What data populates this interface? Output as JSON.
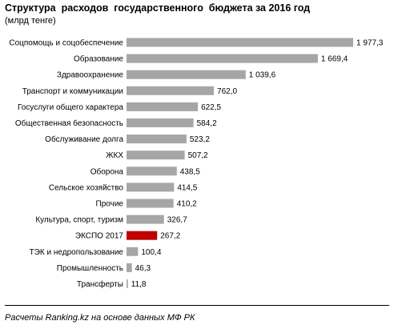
{
  "header": {
    "title": "Структура  расходов  государственного  бюджета за 2016 год",
    "subtitle": "(млрд тенге)"
  },
  "footer": {
    "source": "Расчеты Ranking.kz на основе данных МФ РК"
  },
  "colors": {
    "bar_default": "#a6a6a6",
    "bar_highlight": "#c00000"
  },
  "chart_data": {
    "type": "bar",
    "orientation": "horizontal",
    "title": "Структура  расходов  государственного  бюджета за 2016 год",
    "unit": "(млрд тенге)",
    "categories": [
      "Соцпомощь и соцобеспечение",
      "Образование",
      "Здравоохранение",
      "Транспорт и коммуникации",
      "Госуслуги общего характера",
      "Общественная безопасность",
      "Обслуживание долга",
      "ЖКХ",
      "Оборона",
      "Сельское хозяйство",
      "Прочие",
      "Культура, спорт, туризм",
      "ЭКСПО 2017",
      "ТЭК и недропользование",
      "Промышленность",
      "Трансферты"
    ],
    "values": [
      1977.3,
      1669.4,
      1039.6,
      762.0,
      622.5,
      584.2,
      523.2,
      507.2,
      438.5,
      414.5,
      410.2,
      326.7,
      267.2,
      100.4,
      46.3,
      11.8
    ],
    "value_labels": [
      "1 977,3",
      "1 669,4",
      "1 039,6",
      "762,0",
      "622,5",
      "584,2",
      "523,2",
      "507,2",
      "438,5",
      "414,5",
      "410,2",
      "326,7",
      "267,2",
      "100,4",
      "46,3",
      "11,8"
    ],
    "highlight": "ЭКСПО 2017",
    "xlim": [
      0,
      1977.3
    ],
    "grid": false,
    "axis_labels_shown": false
  }
}
